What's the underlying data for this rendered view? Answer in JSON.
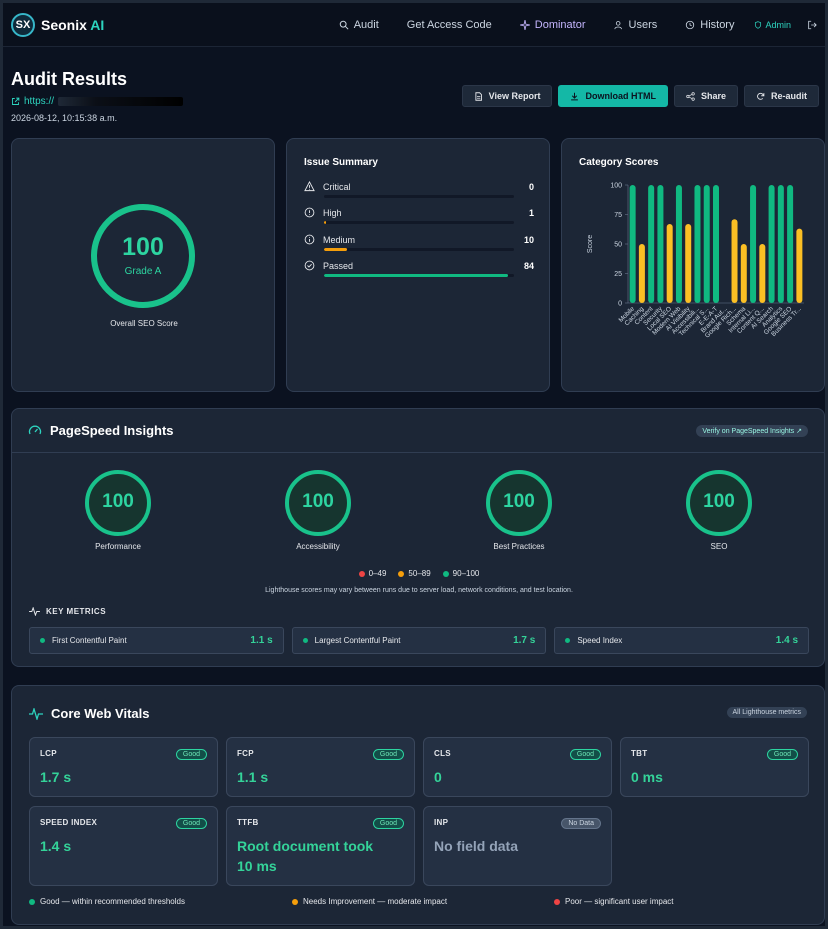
{
  "app": {
    "logo_mark": "SX",
    "name": "Seonix",
    "name_suffix": "AI"
  },
  "nav": [
    {
      "label": "Audit",
      "icon": "search-icon"
    },
    {
      "label": "Get Access Code",
      "icon": ""
    },
    {
      "label": "Dominator",
      "icon": "sparkle-icon",
      "active": true
    },
    {
      "label": "Users",
      "icon": "users-icon"
    },
    {
      "label": "History",
      "icon": "history-icon"
    },
    {
      "label": "Admin",
      "icon": "shield-icon"
    }
  ],
  "audit": {
    "title": "Audit Results",
    "url_prefix": "https://",
    "date": "2026-08-12, 10:15:38 a.m."
  },
  "actions": {
    "view_report": "View Report",
    "download_html": "Download HTML",
    "share": "Share",
    "re_audit": "Re-audit"
  },
  "overall": {
    "score": "100",
    "grade": "Grade A",
    "label": "Overall SEO Score"
  },
  "issues": {
    "title": "Issue Summary",
    "rows": [
      {
        "label": "Critical",
        "count": "0",
        "fill": 0,
        "color": "#ef4444"
      },
      {
        "label": "High",
        "count": "1",
        "fill": 0.01,
        "color": "#f59e0b"
      },
      {
        "label": "Medium",
        "count": "10",
        "fill": 0.12,
        "color": "#f59e0b"
      },
      {
        "label": "Passed",
        "count": "84",
        "fill": 0.97,
        "color": "#10b981"
      }
    ]
  },
  "category": {
    "title": "Category Scores"
  },
  "chart_data": {
    "type": "bar",
    "title": "Category Scores",
    "ylabel": "Score",
    "ylim": [
      0,
      100
    ],
    "yticks": [
      "0",
      "25",
      "50",
      "75",
      "100"
    ],
    "categories": [
      "Mobile",
      "Caching",
      "Content",
      "Security",
      "Local SEO",
      "Modern Web",
      "AI Visibility",
      "Accessibility",
      "Technical",
      "E-E-A-T",
      "Brand",
      "Google Rich",
      "Schema",
      "Internal Link",
      "Content Quality",
      "AI Search",
      "Analytics",
      "Google SEO",
      "Business Trust"
    ],
    "values": [
      100,
      50,
      100,
      100,
      67,
      100,
      67,
      100,
      100,
      100,
      0,
      71,
      50,
      100,
      50,
      100,
      100,
      100,
      63
    ],
    "colors": [
      "#10b981",
      "#fbbf24",
      "#10b981",
      "#10b981",
      "#fbbf24",
      "#10b981",
      "#fbbf24",
      "#10b981",
      "#10b981",
      "#10b981",
      "#10b981",
      "#fbbf24",
      "#fbbf24",
      "#10b981",
      "#fbbf24",
      "#10b981",
      "#10b981",
      "#10b981",
      "#fbbf24"
    ],
    "tick_labels": [
      "Mobile",
      "Caching",
      "Content",
      "Security",
      "Local SEO",
      "Modern Web",
      "AI Visibility",
      "Accessibili...",
      "Technical S...",
      "E-E-A-T",
      "Brand Aut...",
      "Google Rich...",
      "Schema",
      "Internal Li...",
      "Content Q...",
      "AI Search",
      "Analytics",
      "Google SEO",
      "Business Tr..."
    ],
    "grid": false,
    "legend": "none"
  },
  "pagespeed": {
    "title": "PageSpeed Insights",
    "verify": "Verify on PageSpeed Insights ↗",
    "gauges": [
      {
        "label": "Performance",
        "score": "100"
      },
      {
        "label": "Accessibility",
        "score": "100"
      },
      {
        "label": "Best Practices",
        "score": "100"
      },
      {
        "label": "SEO",
        "score": "100"
      }
    ],
    "legend": [
      {
        "label": "0–49",
        "color": "#ef4444"
      },
      {
        "label": "50–89",
        "color": "#f59e0b"
      },
      {
        "label": "90–100",
        "color": "#10b981"
      }
    ],
    "note": "Lighthouse scores may vary between runs due to server load, network conditions, and test location.",
    "key_metrics_title": "KEY METRICS",
    "key_metrics": [
      {
        "label": "First Contentful Paint",
        "value": "1.1 s"
      },
      {
        "label": "Largest Contentful Paint",
        "value": "1.7 s"
      },
      {
        "label": "Speed Index",
        "value": "1.4 s"
      }
    ]
  },
  "cwv": {
    "title": "Core Web Vitals",
    "chip": "All Lighthouse metrics",
    "metrics": [
      {
        "name": "LCP",
        "badge": "Good",
        "value": "1.7 s"
      },
      {
        "name": "FCP",
        "badge": "Good",
        "value": "1.1 s"
      },
      {
        "name": "CLS",
        "badge": "Good",
        "value": "0"
      },
      {
        "name": "TBT",
        "badge": "Good",
        "value": "0 ms"
      },
      {
        "name": "SPEED INDEX",
        "badge": "Good",
        "value": "1.4 s"
      },
      {
        "name": "TTFB",
        "badge": "Good",
        "value": "Root document took 10 ms"
      },
      {
        "name": "INP",
        "badge": "No Data",
        "value": "No field data"
      }
    ],
    "legend": [
      {
        "label": "Good — within recommended thresholds",
        "color": "#10b981"
      },
      {
        "label": "Needs Improvement — moderate impact",
        "color": "#f59e0b"
      },
      {
        "label": "Poor — significant user impact",
        "color": "#ef4444"
      }
    ]
  }
}
